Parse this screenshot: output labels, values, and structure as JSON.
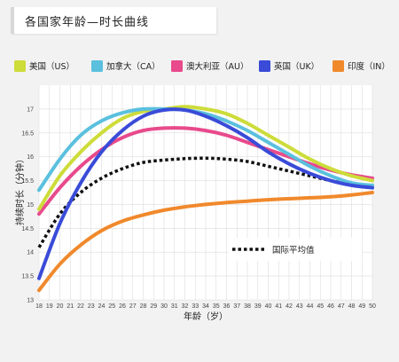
{
  "chart_data": {
    "type": "line",
    "title": "各国家年龄—时长曲线",
    "xlabel": "年龄（岁）",
    "ylabel": "持续时长（分钟）",
    "xlim": [
      18,
      50
    ],
    "ylim": [
      13,
      17.5
    ],
    "x_ticks": [
      18,
      19,
      20,
      21,
      22,
      23,
      24,
      25,
      26,
      27,
      28,
      29,
      30,
      31,
      32,
      33,
      34,
      35,
      36,
      37,
      38,
      39,
      40,
      41,
      42,
      43,
      44,
      45,
      46,
      47,
      48,
      49,
      50
    ],
    "y_ticks": [
      13,
      13.5,
      14,
      14.5,
      15,
      15.5,
      16,
      16.5,
      17
    ],
    "grid": true,
    "legend_position": "top",
    "x": [
      18,
      20,
      22,
      24,
      26,
      28,
      30,
      32,
      34,
      36,
      38,
      40,
      42,
      44,
      46,
      48,
      50
    ],
    "series": [
      {
        "name": "美国（US）",
        "color": "#cddc39",
        "values": [
          14.9,
          15.6,
          16.1,
          16.5,
          16.8,
          16.95,
          17.0,
          17.05,
          17.0,
          16.9,
          16.7,
          16.45,
          16.2,
          15.95,
          15.75,
          15.6,
          15.5
        ]
      },
      {
        "name": "加拿大（CA）",
        "color": "#5bc0de",
        "values": [
          15.3,
          15.95,
          16.45,
          16.75,
          16.92,
          17.0,
          17.0,
          16.98,
          16.9,
          16.75,
          16.55,
          16.3,
          16.05,
          15.8,
          15.6,
          15.45,
          15.4
        ]
      },
      {
        "name": "澳大利亚（AU）",
        "color": "#e84a8c",
        "values": [
          14.8,
          15.35,
          15.8,
          16.15,
          16.4,
          16.55,
          16.6,
          16.6,
          16.55,
          16.45,
          16.3,
          16.15,
          16.0,
          15.85,
          15.72,
          15.62,
          15.55
        ]
      },
      {
        "name": "英国（UK）",
        "color": "#3a4bd8",
        "values": [
          13.45,
          14.6,
          15.45,
          16.1,
          16.55,
          16.85,
          16.98,
          16.98,
          16.85,
          16.65,
          16.4,
          16.1,
          15.85,
          15.65,
          15.5,
          15.4,
          15.35
        ]
      },
      {
        "name": "印度（IN）",
        "color": "#f0892c",
        "values": [
          13.2,
          13.75,
          14.15,
          14.45,
          14.65,
          14.78,
          14.88,
          14.95,
          15.0,
          15.04,
          15.07,
          15.1,
          15.12,
          15.14,
          15.16,
          15.2,
          15.25
        ]
      },
      {
        "name": "国际平均值",
        "color": "#111111",
        "dashed": true,
        "values": [
          14.1,
          14.8,
          15.25,
          15.55,
          15.75,
          15.88,
          15.93,
          15.96,
          15.97,
          15.95,
          15.9,
          15.8,
          15.7,
          15.6,
          15.5,
          15.42,
          15.4
        ]
      }
    ]
  }
}
